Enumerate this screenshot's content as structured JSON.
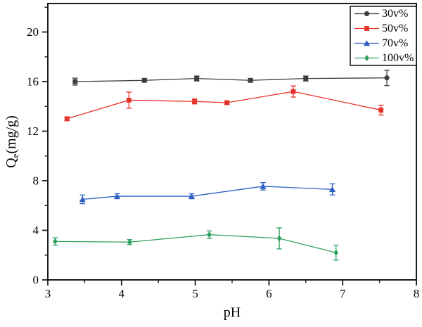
{
  "figure_label": "Adsorption capacity versus pH line chart with error bars",
  "chart_data": {
    "type": "line",
    "title": "",
    "xlabel": "pH",
    "ylabel": "Qe(mg/g)",
    "ylabel_parts": {
      "main": "Q",
      "sub": "e",
      "rest": "(mg/g)"
    },
    "xlim": [
      3,
      8
    ],
    "ylim": [
      0,
      22.3
    ],
    "x_major_ticks": [
      3,
      4,
      5,
      6,
      7,
      8
    ],
    "x_minor_ticks": [
      3.5,
      4.5,
      5.5,
      6.5,
      7.5
    ],
    "y_major_ticks": [
      0,
      4,
      8,
      12,
      16,
      20
    ],
    "y_minor_ticks": [
      2,
      6,
      10,
      14,
      18,
      22
    ],
    "grid": false,
    "frame": true,
    "legend_position": "top-right",
    "axis_color": "#1a1a1a",
    "legend": {
      "entries": [
        "30v%",
        "50v%",
        "70v%",
        "100v%"
      ]
    },
    "series": [
      {
        "name": "30v%",
        "color": "#3d3d3d",
        "marker": "circle",
        "plot_markers": [
          "square",
          "square",
          "square",
          "square",
          "square",
          "circle"
        ],
        "x": [
          3.37,
          4.31,
          5.02,
          5.75,
          6.5,
          7.6
        ],
        "y": [
          16.0,
          16.1,
          16.25,
          16.1,
          16.25,
          16.3
        ],
        "yerr": [
          0.28,
          0.15,
          0.2,
          0.15,
          0.2,
          0.62
        ]
      },
      {
        "name": "50v%",
        "color": "#e63229",
        "marker": "square",
        "x": [
          3.26,
          4.1,
          4.99,
          5.43,
          6.33,
          7.52
        ],
        "y": [
          13.0,
          14.5,
          14.4,
          14.3,
          15.2,
          13.7
        ],
        "yerr": [
          0.15,
          0.65,
          0.2,
          0.15,
          0.45,
          0.4
        ]
      },
      {
        "name": "70v%",
        "color": "#2f5fc4",
        "marker": "triangle",
        "x": [
          3.47,
          3.94,
          4.95,
          5.92,
          6.86
        ],
        "y": [
          6.5,
          6.75,
          6.75,
          7.55,
          7.3
        ],
        "yerr": [
          0.35,
          0.2,
          0.2,
          0.3,
          0.45
        ]
      },
      {
        "name": "100v%",
        "color": "#2fa05f",
        "marker": "diamond",
        "x": [
          3.1,
          4.11,
          5.19,
          6.14,
          6.91
        ],
        "y": [
          3.1,
          3.05,
          3.65,
          3.35,
          2.2
        ],
        "yerr": [
          0.3,
          0.2,
          0.3,
          0.85,
          0.6
        ]
      }
    ]
  }
}
